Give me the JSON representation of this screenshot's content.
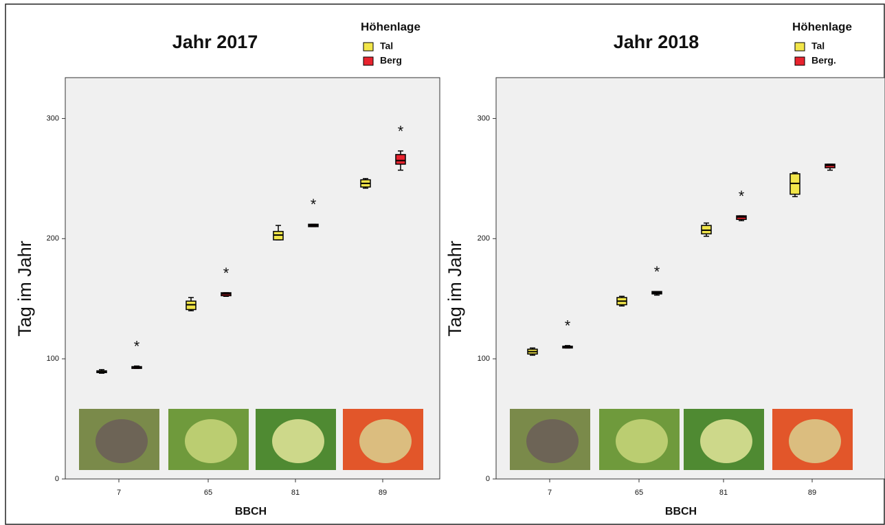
{
  "chart_data": [
    {
      "type": "box",
      "title": "Jahr 2017",
      "x_label": "BBCH",
      "y_label": "Tag im Jahr",
      "legend_title": "Höhenlage",
      "categories": [
        "7",
        "65",
        "81",
        "89"
      ],
      "ylim": [
        0,
        334
      ],
      "yticks": [
        0,
        100,
        200,
        300
      ],
      "series": [
        {
          "name": "Tal",
          "color": "#f2e64a",
          "values": [
            {
              "min": 88,
              "q1": 88.5,
              "median": 89,
              "q3": 90,
              "max": 91
            },
            {
              "min": 140,
              "q1": 141,
              "median": 145,
              "q3": 148,
              "max": 151
            },
            {
              "min": 199,
              "q1": 199,
              "median": 203,
              "q3": 206,
              "max": 211
            },
            {
              "min": 242,
              "q1": 243,
              "median": 246,
              "q3": 249,
              "max": 250
            }
          ]
        },
        {
          "name": "Berg",
          "color": "#e8232e",
          "values": [
            {
              "min": 92,
              "q1": 92,
              "median": 93,
              "q3": 93.5,
              "max": 94
            },
            {
              "min": 152,
              "q1": 152.5,
              "median": 154,
              "q3": 155,
              "max": 155
            },
            {
              "min": 210,
              "q1": 210,
              "median": 211,
              "q3": 212,
              "max": 212
            },
            {
              "min": 257,
              "q1": 262,
              "median": 265,
              "q3": 270,
              "max": 273
            }
          ]
        }
      ],
      "annotations": [
        {
          "text": "*",
          "x": "7"
        },
        {
          "text": "*",
          "x": "65"
        },
        {
          "text": "*",
          "x": "81"
        },
        {
          "text": "*",
          "x": "89"
        }
      ]
    },
    {
      "type": "box",
      "title": "Jahr 2018",
      "x_label": "BBCH",
      "y_label": "Tag im Jahr",
      "legend_title": "Höhenlage",
      "categories": [
        "7",
        "65",
        "81",
        "89"
      ],
      "ylim": [
        0,
        334
      ],
      "yticks": [
        0,
        100,
        200,
        300
      ],
      "series": [
        {
          "name": "Tal",
          "color": "#f2e64a",
          "values": [
            {
              "min": 103,
              "q1": 104,
              "median": 106,
              "q3": 108,
              "max": 109
            },
            {
              "min": 144,
              "q1": 145,
              "median": 148,
              "q3": 151,
              "max": 152
            },
            {
              "min": 202,
              "q1": 204,
              "median": 207,
              "q3": 211,
              "max": 213
            },
            {
              "min": 235,
              "q1": 237,
              "median": 246,
              "q3": 254,
              "max": 255
            }
          ]
        },
        {
          "name": "Berg.",
          "color": "#e8232e",
          "values": [
            {
              "min": 109,
              "q1": 109,
              "median": 110,
              "q3": 110.5,
              "max": 111
            },
            {
              "min": 153,
              "q1": 154,
              "median": 155,
              "q3": 156,
              "max": 156
            },
            {
              "min": 215,
              "q1": 216,
              "median": 218,
              "q3": 219,
              "max": 219
            },
            {
              "min": 257,
              "q1": 259,
              "median": 261,
              "q3": 262,
              "max": 262
            }
          ]
        }
      ],
      "annotations": [
        {
          "text": "*",
          "x": "7"
        },
        {
          "text": "*",
          "x": "65"
        },
        {
          "text": "*",
          "x": "81"
        }
      ]
    }
  ]
}
